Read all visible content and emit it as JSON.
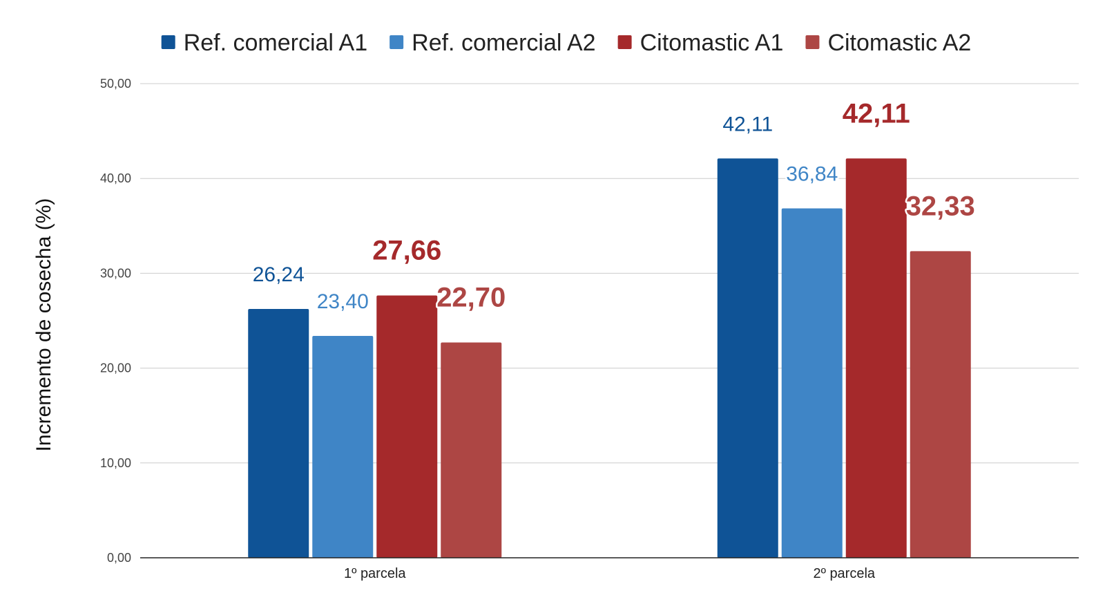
{
  "chart_data": {
    "type": "bar",
    "categories": [
      "1º parcela",
      "2º parcela"
    ],
    "series": [
      {
        "name": "Ref. comercial A1",
        "color": "#0f5396",
        "values": [
          26.24,
          42.11
        ],
        "labels": [
          "26,24",
          "42,11"
        ],
        "label_style": "normal"
      },
      {
        "name": "Ref. comercial A2",
        "color": "#3f85c6",
        "values": [
          23.4,
          36.84
        ],
        "labels": [
          "23,40",
          "36,84"
        ],
        "label_style": "normal"
      },
      {
        "name": "Citomastic A1",
        "color": "#a5292b",
        "values": [
          27.66,
          42.11
        ],
        "labels": [
          "27,66",
          "42,11"
        ],
        "label_style": "bold"
      },
      {
        "name": "Citomastic A2",
        "color": "#ad4644",
        "values": [
          22.7,
          32.33
        ],
        "labels": [
          "22,70",
          "32,33"
        ],
        "label_style": "bold"
      }
    ],
    "ylabel": "Incremento de cosecha (%)",
    "xlabel": "",
    "ylim": [
      0,
      50
    ],
    "yticks": [
      0,
      10,
      20,
      30,
      40,
      50
    ],
    "ytick_labels": [
      "0,00",
      "10,00",
      "20,00",
      "30,00",
      "40,00",
      "50,00"
    ],
    "grid": true,
    "legend_position": "top-center"
  }
}
